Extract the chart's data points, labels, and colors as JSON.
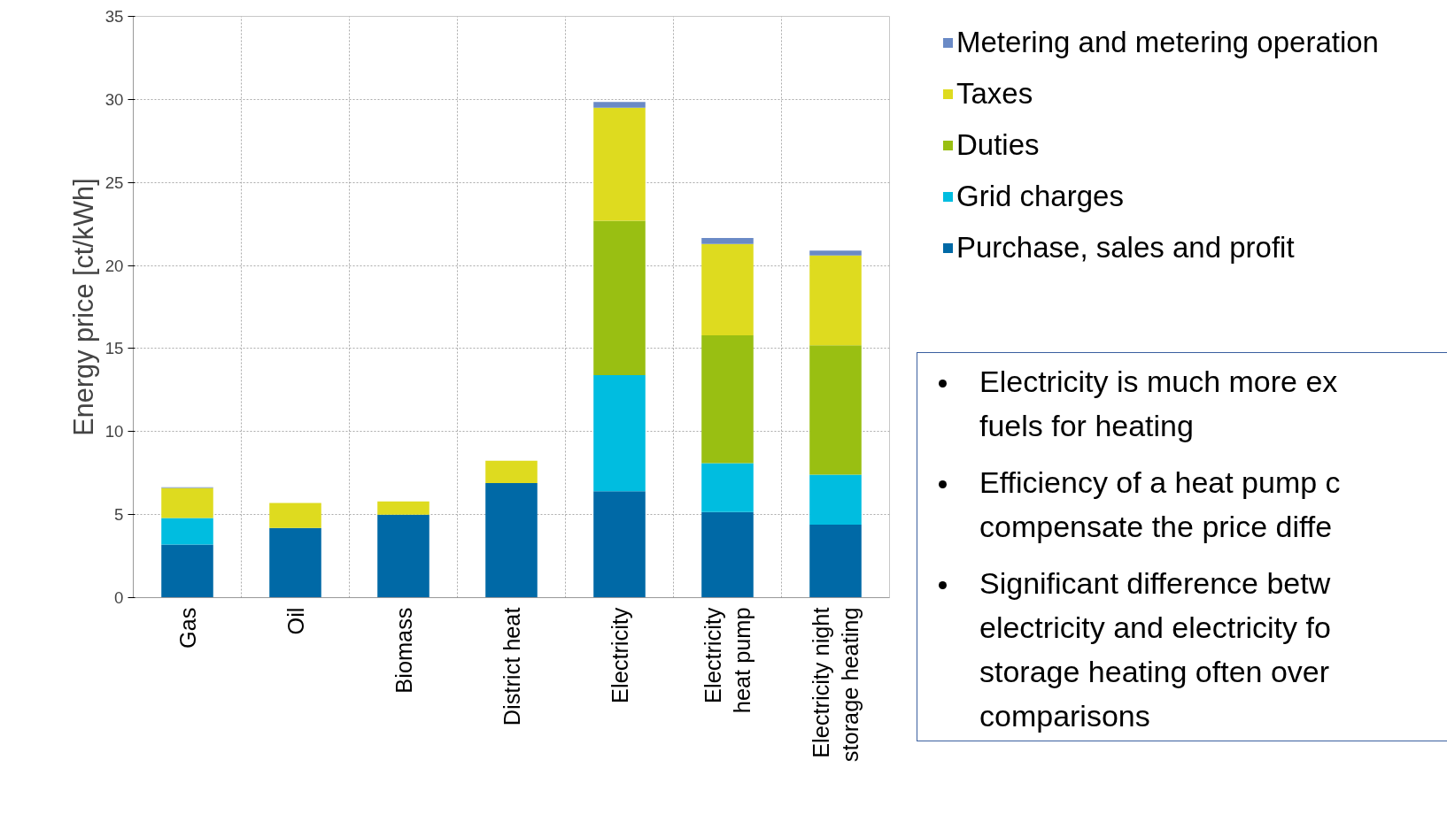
{
  "chart_data": {
    "type": "bar",
    "stacked": true,
    "ylabel": "Energy price [ct/kWh]",
    "categories": [
      "Gas",
      "Oil",
      "Biomass",
      "District heat",
      "Electricity",
      "Electricity\nheat pump",
      "Electricity night\nstorage heating"
    ],
    "series": [
      {
        "name": "Purchase, sales and profit",
        "color": "#0069a6",
        "values": [
          3.2,
          4.2,
          5.0,
          6.9,
          6.4,
          5.15,
          4.4
        ]
      },
      {
        "name": "Grid charges",
        "color": "#00bde0",
        "values": [
          1.6,
          null,
          null,
          null,
          7.0,
          2.95,
          3.0
        ]
      },
      {
        "name": "Duties",
        "color": "#99bf12",
        "values": [
          null,
          null,
          null,
          null,
          9.3,
          7.7,
          7.8
        ]
      },
      {
        "name": "Taxes",
        "color": "#dedb1f",
        "values": [
          1.8,
          1.5,
          0.8,
          1.35,
          6.8,
          5.5,
          5.4
        ]
      },
      {
        "name": "Metering and metering operation",
        "color": "#6a8ac6",
        "values": [
          0.05,
          null,
          null,
          null,
          0.35,
          0.35,
          0.3
        ]
      }
    ],
    "ylim": [
      0,
      35
    ],
    "yticks": [
      0,
      5,
      10,
      15,
      20,
      25,
      30,
      35
    ],
    "grid": true,
    "legend": "top right",
    "annotations": [
      "Electricity is much more ex\nfuels for heating",
      "Efficiency of a heat pump c\ncompensate the price diffe",
      "Significant difference betw\nelectricity and electricity fo\nstorage heating often over\ncomparisons"
    ]
  }
}
